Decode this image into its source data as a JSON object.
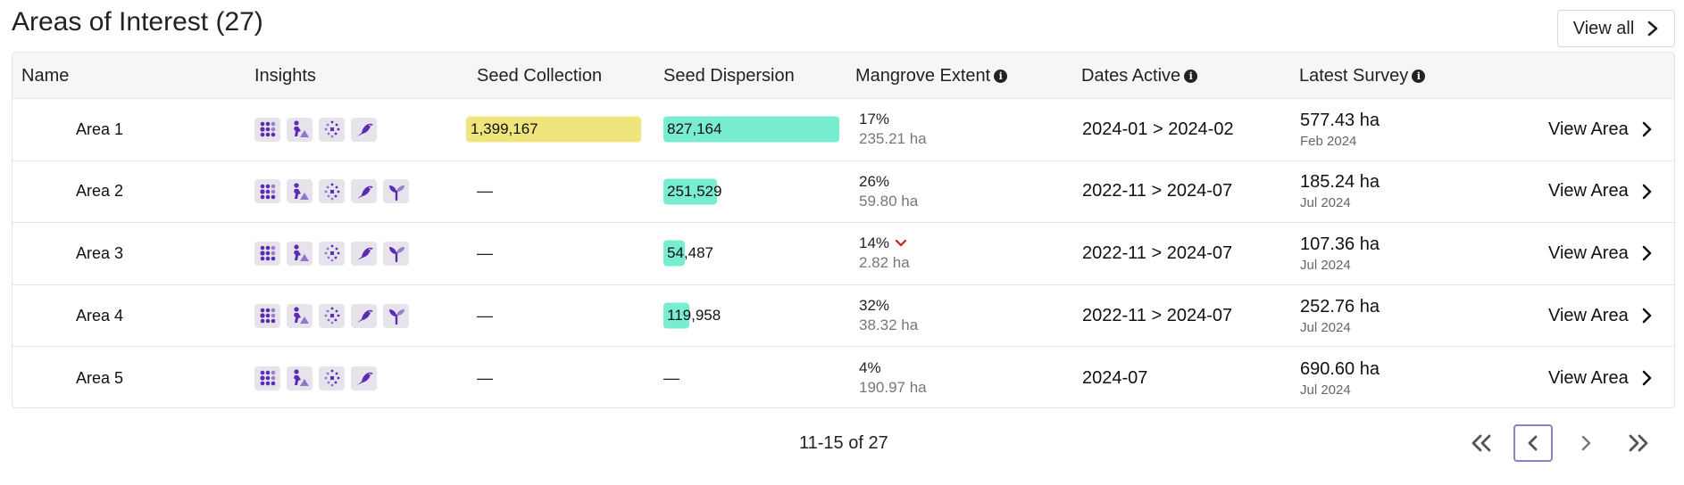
{
  "header": {
    "title": "Areas of Interest (27)",
    "view_all_label": "View all"
  },
  "table": {
    "columns": {
      "name": "Name",
      "insights": "Insights",
      "seed_collection": "Seed Collection",
      "seed_dispersion": "Seed Dispersion",
      "mangrove_extent": "Mangrove Extent",
      "dates_active": "Dates Active",
      "latest_survey": "Latest Survey"
    },
    "insight_icons": [
      "grid-dots-icon",
      "planter-icon",
      "dispersal-icon",
      "bird-icon",
      "sprout-icon"
    ],
    "colors": {
      "seed_collection_bar": "#f0e57c",
      "seed_dispersion_bar": "#78edcf",
      "icon_purple": "#5b2bb5",
      "decline_red": "#c0392b"
    },
    "bar_max": {
      "seed_collection": 1399167,
      "seed_dispersion": 827164
    },
    "rows": [
      {
        "name": "Area 1",
        "insights": 4,
        "seed_collection": "1,399,167",
        "seed_collection_value": 1399167,
        "seed_dispersion": "827,164",
        "seed_dispersion_value": 827164,
        "extent_pct": "17%",
        "extent_ha": "235.21 ha",
        "extent_decline": false,
        "dates": "2024-01 > 2024-02",
        "survey_value": "577.43 ha",
        "survey_month": "Feb 2024",
        "view_label": "View Area"
      },
      {
        "name": "Area 2",
        "insights": 5,
        "seed_collection": "—",
        "seed_collection_value": 0,
        "seed_dispersion": "251,529",
        "seed_dispersion_value": 251529,
        "extent_pct": "26%",
        "extent_ha": "59.80 ha",
        "extent_decline": false,
        "dates": "2022-11 > 2024-07",
        "survey_value": "185.24 ha",
        "survey_month": "Jul 2024",
        "view_label": "View Area"
      },
      {
        "name": "Area 3",
        "insights": 5,
        "seed_collection": "—",
        "seed_collection_value": 0,
        "seed_dispersion": "54,487",
        "seed_dispersion_value": 54487,
        "extent_pct": "14%",
        "extent_ha": "2.82 ha",
        "extent_decline": true,
        "dates": "2022-11 > 2024-07",
        "survey_value": "107.36 ha",
        "survey_month": "Jul 2024",
        "view_label": "View Area"
      },
      {
        "name": "Area 4",
        "insights": 5,
        "seed_collection": "—",
        "seed_collection_value": 0,
        "seed_dispersion": "119,958",
        "seed_dispersion_value": 119958,
        "extent_pct": "32%",
        "extent_ha": "38.32 ha",
        "extent_decline": false,
        "dates": "2022-11 > 2024-07",
        "survey_value": "252.76 ha",
        "survey_month": "Jul 2024",
        "view_label": "View Area"
      },
      {
        "name": "Area 5",
        "insights": 4,
        "seed_collection": "—",
        "seed_collection_value": 0,
        "seed_dispersion": "—",
        "seed_dispersion_value": 0,
        "extent_pct": "4%",
        "extent_ha": "190.97 ha",
        "extent_decline": false,
        "dates": "2024-07",
        "survey_value": "690.60 ha",
        "survey_month": "Jul 2024",
        "view_label": "View Area"
      }
    ]
  },
  "pagination": {
    "label": "11-15 of 27",
    "buttons": [
      "first-page-icon",
      "previous-page-icon",
      "next-page-icon",
      "last-page-icon"
    ],
    "active": "previous-page-icon"
  }
}
